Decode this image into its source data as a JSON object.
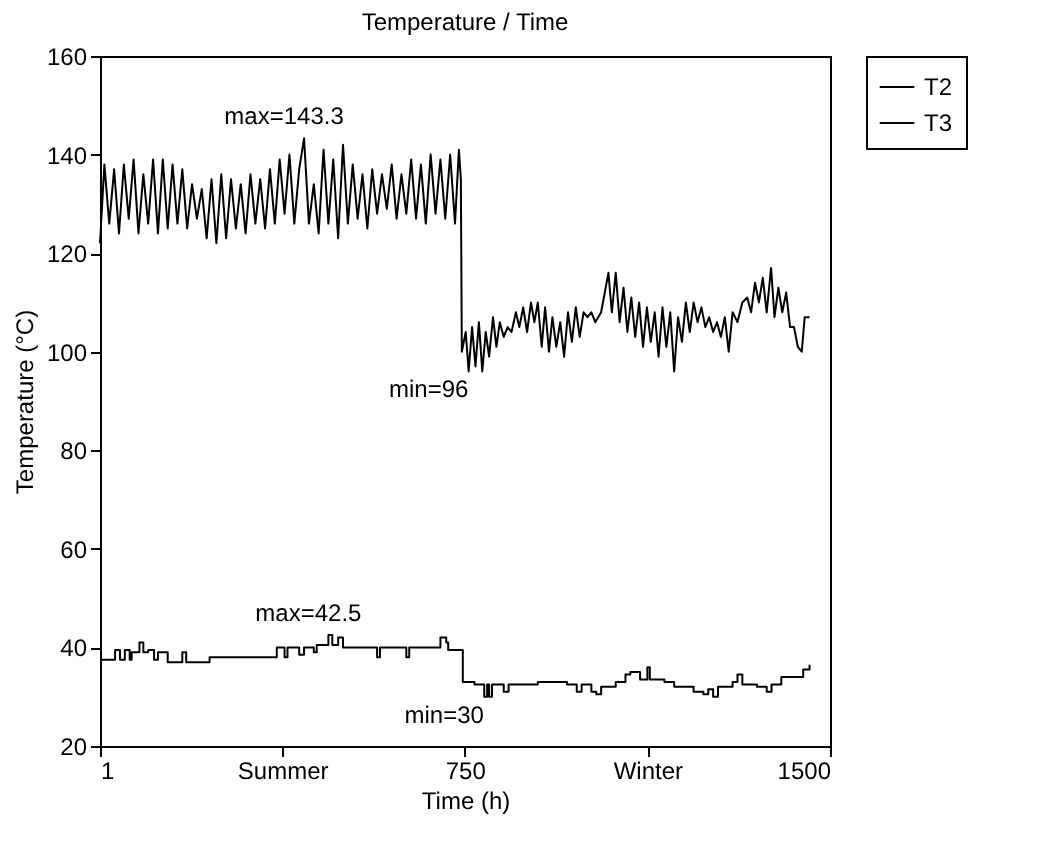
{
  "chart_data": {
    "type": "line",
    "title": "Temperature / Time",
    "xlabel": "Time (h)",
    "ylabel": "Temperature (°C)",
    "xlim": [
      1,
      1500
    ],
    "xticks": [
      1,
      {
        "value": 375,
        "label": "Summer"
      },
      750,
      {
        "value": 1125,
        "label": "Winter"
      },
      1500
    ],
    "ylim": [
      20,
      160
    ],
    "yticks": [
      20,
      40,
      60,
      80,
      100,
      120,
      140,
      160
    ],
    "grid": false,
    "legend": "top right",
    "series": [
      {
        "name": "T2",
        "type": "line",
        "color": "#000000",
        "x": [
          1,
          10,
          20,
          30,
          40,
          50,
          60,
          70,
          80,
          90,
          100,
          110,
          120,
          130,
          140,
          150,
          160,
          170,
          180,
          190,
          200,
          210,
          220,
          230,
          240,
          250,
          260,
          270,
          280,
          290,
          300,
          310,
          320,
          330,
          340,
          350,
          360,
          370,
          380,
          390,
          400,
          410,
          420,
          430,
          440,
          450,
          460,
          470,
          480,
          490,
          500,
          510,
          520,
          530,
          540,
          550,
          560,
          570,
          580,
          590,
          600,
          610,
          620,
          630,
          640,
          650,
          660,
          670,
          680,
          690,
          700,
          710,
          720,
          730,
          738,
          742,
          744,
          752,
          758,
          765,
          772,
          779,
          786,
          793,
          800,
          808,
          815,
          822,
          830,
          838,
          846,
          855,
          862,
          870,
          878,
          886,
          893,
          900,
          908,
          915,
          923,
          930,
          938,
          946,
          954,
          962,
          970,
          978,
          986,
          994,
          1002,
          1010,
          1018,
          1030,
          1045,
          1052,
          1060,
          1068,
          1076,
          1084,
          1092,
          1100,
          1108,
          1116,
          1124,
          1132,
          1140,
          1148,
          1156,
          1164,
          1172,
          1180,
          1188,
          1196,
          1204,
          1212,
          1220,
          1228,
          1236,
          1244,
          1252,
          1260,
          1268,
          1276,
          1284,
          1292,
          1300,
          1310,
          1320,
          1330,
          1338,
          1346,
          1354,
          1362,
          1370,
          1379,
          1386,
          1394,
          1402,
          1410,
          1418,
          1426,
          1434,
          1442,
          1448,
          1458
        ],
        "values": [
          122,
          138,
          126,
          137,
          124,
          138,
          127,
          139,
          124,
          136,
          126,
          139,
          124,
          139,
          125,
          138,
          126,
          137,
          125,
          134,
          127,
          133,
          123,
          135,
          122,
          136,
          123,
          135,
          125,
          134,
          124,
          136,
          126,
          135,
          125,
          137,
          126,
          139,
          128,
          140,
          126,
          137,
          143.3,
          126,
          134,
          124,
          141,
          126,
          139,
          123,
          142,
          126,
          138,
          127,
          136,
          125,
          137,
          128,
          136,
          129,
          138,
          127,
          136,
          128,
          139,
          127,
          138,
          126,
          140,
          128,
          139,
          127,
          140,
          126,
          141,
          135,
          100,
          104,
          96,
          105,
          97,
          106,
          96,
          104,
          99,
          107,
          101,
          106,
          103,
          105,
          104,
          108,
          105,
          109,
          104,
          110,
          106,
          110,
          101,
          109,
          100,
          107,
          101,
          106,
          99,
          108,
          102,
          109,
          103,
          108,
          107,
          108,
          106,
          108,
          116,
          108,
          116,
          106,
          113,
          104,
          111,
          103,
          110,
          101,
          109,
          102,
          108,
          99,
          109,
          101,
          108,
          96,
          107,
          102,
          110,
          104,
          110,
          106,
          109,
          105,
          107,
          104,
          106,
          103,
          107,
          100,
          108,
          106,
          110,
          111,
          108,
          114,
          110,
          115,
          108,
          117,
          107,
          113,
          108,
          112,
          105,
          105,
          101,
          100,
          107,
          107
        ]
      },
      {
        "name": "T3",
        "type": "step",
        "color": "#000000",
        "x": [
          1,
          32,
          42,
          52,
          62,
          66,
          82,
          90,
          100,
          112,
          120,
          140,
          160,
          170,
          178,
          226,
          360,
          364,
          380,
          386,
          410,
          420,
          440,
          446,
          470,
          478,
          490,
          500,
          560,
          570,
          576,
          620,
          630,
          636,
          700,
          712,
          716,
          740,
          746,
          770,
          790,
          796,
          800,
          806,
          830,
          840,
          900,
          960,
          980,
          990,
          1010,
          1020,
          1030,
          1060,
          1080,
          1090,
          1110,
          1125,
          1130,
          1160,
          1180,
          1220,
          1240,
          1250,
          1260,
          1270,
          1300,
          1310,
          1320,
          1350,
          1370,
          1380,
          1400,
          1430,
          1445,
          1458
        ],
        "values": [
          37.5,
          39.5,
          37.5,
          39.5,
          37.5,
          39,
          41,
          39,
          39.5,
          37.5,
          39,
          37,
          37,
          39,
          37,
          38,
          38,
          40,
          38,
          40,
          38.5,
          40,
          39,
          40.5,
          42.5,
          40.5,
          42,
          40,
          40,
          38,
          40,
          40,
          38,
          40,
          42,
          41,
          39.5,
          39.5,
          33,
          32.5,
          30,
          32.5,
          30,
          32.5,
          31,
          32.5,
          33,
          32.5,
          31,
          32.5,
          31,
          30.5,
          32,
          33,
          34.5,
          35,
          33.5,
          36,
          33.5,
          33,
          32,
          31,
          30.5,
          31.5,
          30,
          32,
          33,
          34.5,
          32.5,
          32,
          31,
          32.5,
          34,
          34,
          35.5,
          36.5
        ]
      }
    ],
    "annotations": [
      {
        "text": "max=143.3",
        "x": 420,
        "y": 143.3
      },
      {
        "text": "min=96",
        "x": 758,
        "y": 96
      },
      {
        "text": "max=42.5",
        "x": 470,
        "y": 42.5
      },
      {
        "text": "min=30",
        "x": 790,
        "y": 30
      }
    ]
  }
}
